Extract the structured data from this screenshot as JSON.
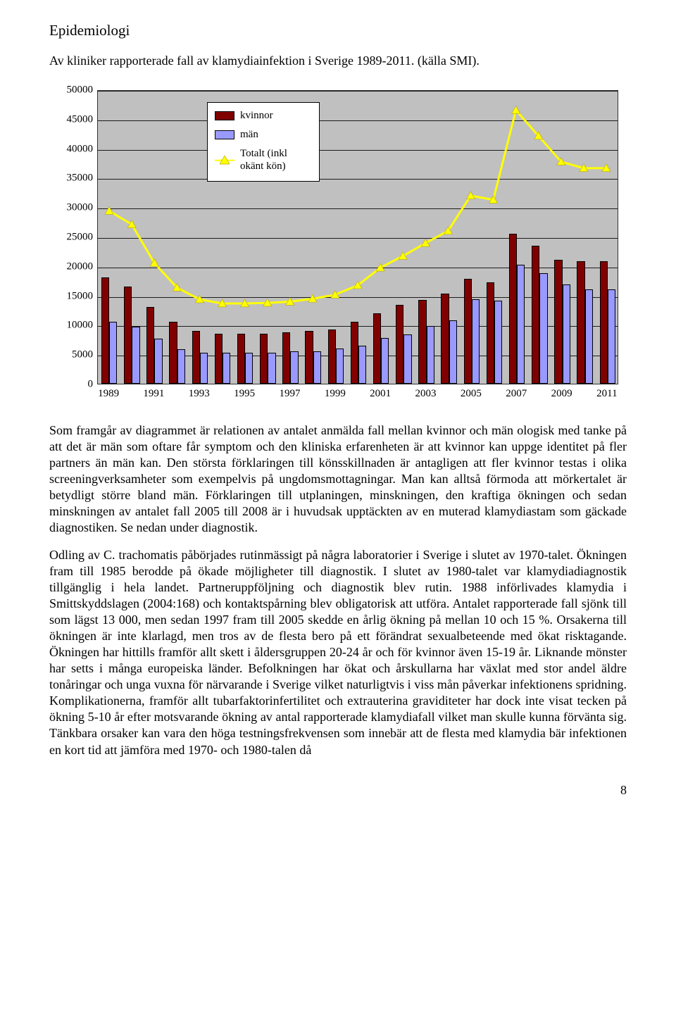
{
  "heading": "Epidemiologi",
  "subtitle": "Av kliniker rapporterade fall av klamydiainfektion i Sverige 1989-2011. (källa SMI).",
  "chart": {
    "type": "bar+line",
    "ylim": [
      0,
      50000
    ],
    "ytick_step": 5000,
    "y_ticks": [
      0,
      5000,
      10000,
      15000,
      20000,
      25000,
      30000,
      35000,
      40000,
      45000,
      50000
    ],
    "years": [
      1989,
      1990,
      1991,
      1992,
      1993,
      1994,
      1995,
      1996,
      1997,
      1998,
      1999,
      2000,
      2001,
      2002,
      2003,
      2004,
      2005,
      2006,
      2007,
      2008,
      2009,
      2010,
      2011
    ],
    "x_tick_labels": [
      1989,
      1991,
      1993,
      1995,
      1997,
      1999,
      2001,
      2003,
      2005,
      2007,
      2009,
      2011
    ],
    "kvinnor": [
      18000,
      16500,
      13000,
      10500,
      9000,
      8500,
      8500,
      8500,
      8700,
      9000,
      9200,
      10500,
      12000,
      13400,
      14200,
      15300,
      17800,
      17200,
      25500,
      23400,
      21000,
      20800,
      20800
    ],
    "man": [
      10500,
      9700,
      7600,
      5900,
      5300,
      5200,
      5200,
      5300,
      5500,
      5500,
      6000,
      6500,
      7800,
      8400,
      9800,
      10800,
      14300,
      14100,
      20200,
      18800,
      16900,
      16000,
      16000
    ],
    "totalt": [
      29500,
      27200,
      20600,
      16400,
      14400,
      13700,
      13700,
      13800,
      14000,
      14500,
      15200,
      16800,
      19800,
      21800,
      24000,
      26100,
      32100,
      31400,
      46700,
      42300,
      37900,
      36800,
      36800
    ],
    "colors": {
      "kvinnor": "#800000",
      "man": "#9999ff",
      "line": "#ffff00",
      "background": "#c0c0c0",
      "grid": "#000000",
      "axis_font": "#000000"
    },
    "legend": {
      "kvinnor": "kvinnor",
      "man": "män",
      "totalt": "Totalt (inkl okänt kön)"
    }
  },
  "para1": "Som framgår av diagrammet är relationen av antalet anmälda fall mellan kvinnor och män ologisk med tanke på att det är män som oftare får symptom och den kliniska erfarenheten är att kvinnor kan uppge identitet på fler partners än män kan. Den största förklaringen till könsskillnaden är antagligen att fler kvinnor testas i olika screeningverksamheter som exempelvis på ungdomsmottagningar. Man kan alltså förmoda att mörkertalet är betydligt större bland män. Förklaringen till utplaningen, minskningen, den kraftiga ökningen och sedan minskningen av antalet fall 2005 till 2008 är i huvudsak upptäckten av en muterad klamydiastam som gäckade diagnostiken. Se nedan under diagnostik.",
  "para2": "Odling av C. trachomatis påbörjades rutinmässigt på några laboratorier i Sverige i slutet av 1970-talet. Ökningen fram till 1985 berodde på ökade möjligheter till diagnostik. I slutet av 1980-talet var klamydiadiagnostik tillgänglig i hela landet. Partneruppföljning och diagnostik blev rutin. 1988 införlivades klamydia i Smittskyddslagen (2004:168) och kontaktspårning blev obligatorisk att utföra. Antalet rapporterade fall sjönk till som lägst 13 000, men sedan 1997 fram till 2005 skedde en årlig ökning på mellan 10 och 15 %. Orsakerna till ökningen är inte klarlagd, men tros av de flesta bero på ett förändrat sexualbeteende med ökat risktagande. Ökningen har hittills framför allt skett i åldersgruppen 20-24 år och för kvinnor även 15-19 år. Liknande mönster har setts i många europeiska länder. Befolkningen har ökat och årskullarna har växlat med stor andel äldre tonåringar och unga vuxna för närvarande i Sverige vilket naturligtvis i viss mån påverkar infektionens spridning. Komplikationerna, framför allt tubarfaktorinfertilitet och extrauterina graviditeter har dock inte visat tecken på ökning 5-10 år efter motsvarande ökning av antal rapporterade klamydiafall vilket man skulle kunna förvänta sig. Tänkbara orsaker kan vara den höga testningsfrekvensen som innebär att de flesta med klamydia bär infektionen en kort tid att jämföra med 1970- och 1980-talen då",
  "page_number": "8"
}
